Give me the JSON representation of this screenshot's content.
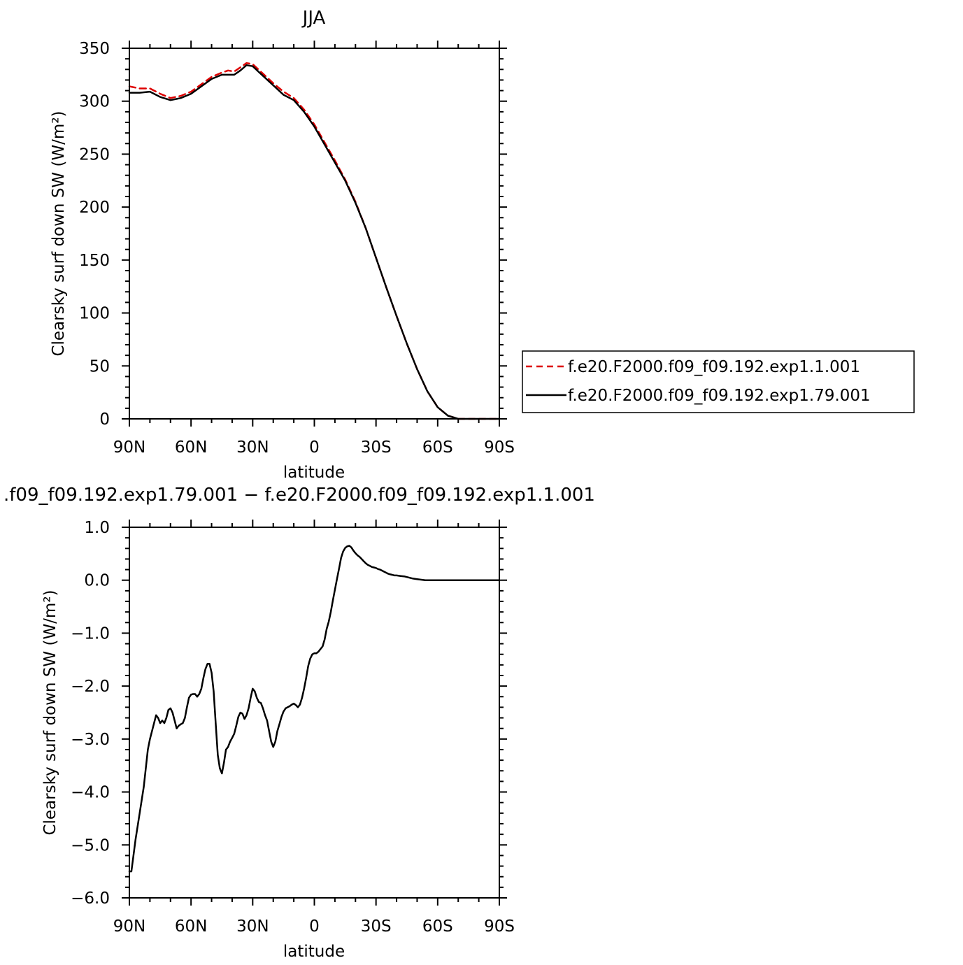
{
  "chart_data": [
    {
      "type": "line",
      "title": "JJA",
      "xlabel": "latitude",
      "ylabel": "Clearsky surf down SW (W/m²)",
      "xlim": [
        90,
        -90
      ],
      "ylim": [
        0,
        350
      ],
      "x_ticks": [
        {
          "value": 90,
          "label": "90N"
        },
        {
          "value": 60,
          "label": "60N"
        },
        {
          "value": 30,
          "label": "30N"
        },
        {
          "value": 0,
          "label": "0"
        },
        {
          "value": -30,
          "label": "30S"
        },
        {
          "value": -60,
          "label": "60S"
        },
        {
          "value": -90,
          "label": "90S"
        }
      ],
      "y_ticks": [
        {
          "value": 0,
          "label": "0"
        },
        {
          "value": 50,
          "label": "50"
        },
        {
          "value": 100,
          "label": "100"
        },
        {
          "value": 150,
          "label": "150"
        },
        {
          "value": 200,
          "label": "200"
        },
        {
          "value": 250,
          "label": "250"
        },
        {
          "value": 300,
          "label": "300"
        },
        {
          "value": 350,
          "label": "350"
        }
      ],
      "legend_position": "right",
      "series": [
        {
          "name": "f.e20.F2000.f09_f09.192.exp1.1.001",
          "color": "#dd0000",
          "style": "dashed",
          "x": [
            90,
            85,
            80,
            75,
            70,
            65,
            60,
            55,
            50,
            45,
            42,
            39,
            36,
            33,
            30,
            25,
            20,
            15,
            10,
            5,
            0,
            -5,
            -10,
            -15,
            -20,
            -25,
            -30,
            -35,
            -40,
            -45,
            -50,
            -55,
            -60,
            -65,
            -70,
            -75,
            -80,
            -85,
            -90
          ],
          "y": [
            314,
            312,
            312,
            307,
            303,
            305,
            309,
            316,
            323,
            327,
            329,
            328,
            332,
            336,
            335,
            326,
            317,
            309,
            303,
            292,
            278,
            261,
            244,
            226,
            205,
            180,
            152,
            124,
            97,
            71,
            47,
            26,
            11,
            3,
            0,
            0,
            0,
            0,
            0
          ]
        },
        {
          "name": "f.e20.F2000.f09_f09.192.exp1.79.001",
          "color": "#000000",
          "style": "solid",
          "x": [
            90,
            85,
            80,
            75,
            70,
            65,
            60,
            55,
            50,
            45,
            42,
            39,
            36,
            33,
            30,
            25,
            20,
            15,
            10,
            5,
            0,
            -5,
            -10,
            -15,
            -20,
            -25,
            -30,
            -35,
            -40,
            -45,
            -50,
            -55,
            -60,
            -65,
            -70,
            -75,
            -80,
            -85,
            -90
          ],
          "y": [
            308,
            308,
            309,
            304,
            301,
            303,
            307,
            314,
            321,
            325,
            325,
            325,
            329,
            334,
            333,
            324,
            315,
            306,
            301,
            290,
            276,
            259,
            242,
            225,
            204,
            180,
            152,
            124,
            97,
            71,
            47,
            26,
            11,
            3,
            0,
            0,
            0,
            0,
            0
          ]
        }
      ]
    },
    {
      "type": "line",
      "title": ".f09_f09.192.exp1.79.001 − f.e20.F2000.f09_f09.192.exp1.1.001",
      "xlabel": "latitude",
      "ylabel": "Clearsky surf down SW (W/m²)",
      "xlim": [
        90,
        -90
      ],
      "ylim": [
        -6,
        1
      ],
      "x_ticks": [
        {
          "value": 90,
          "label": "90N"
        },
        {
          "value": 60,
          "label": "60N"
        },
        {
          "value": 30,
          "label": "30N"
        },
        {
          "value": 0,
          "label": "0"
        },
        {
          "value": -30,
          "label": "30S"
        },
        {
          "value": -60,
          "label": "60S"
        },
        {
          "value": -90,
          "label": "90S"
        }
      ],
      "y_ticks": [
        {
          "value": 1,
          "label": "1.0"
        },
        {
          "value": 0,
          "label": "0.0"
        },
        {
          "value": -1,
          "label": "−1.0"
        },
        {
          "value": -2,
          "label": "−2.0"
        },
        {
          "value": -3,
          "label": "−3.0"
        },
        {
          "value": -4,
          "label": "−4.0"
        },
        {
          "value": -5,
          "label": "−5.0"
        },
        {
          "value": -6,
          "label": "−6.0"
        }
      ],
      "series": [
        {
          "color": "#000000",
          "style": "solid",
          "x": [
            90,
            89,
            87,
            85,
            83,
            81,
            80,
            78,
            77,
            76,
            75,
            74,
            73,
            72,
            71,
            70,
            69,
            68,
            67,
            66,
            65,
            64,
            63,
            62,
            61,
            60,
            59,
            58,
            57,
            56,
            55,
            54,
            53,
            52,
            51,
            50,
            49,
            48,
            47,
            46,
            45,
            44,
            43,
            42,
            41,
            40,
            39,
            38,
            37,
            36,
            35,
            34,
            33,
            32,
            31,
            30,
            29,
            28,
            27,
            26,
            25,
            24,
            23,
            22,
            21,
            20,
            19,
            18,
            17,
            16,
            15,
            14,
            13,
            12,
            11,
            10,
            9,
            8,
            7,
            6,
            5,
            4,
            3,
            2,
            1,
            0,
            -1,
            -2,
            -3,
            -4,
            -5,
            -6,
            -7,
            -8,
            -9,
            -10,
            -11,
            -12,
            -13,
            -14,
            -15,
            -16,
            -17,
            -18,
            -19,
            -20,
            -21,
            -22,
            -23,
            -24,
            -25,
            -26,
            -27,
            -28,
            -29,
            -30,
            -31,
            -32,
            -33,
            -34,
            -35,
            -36,
            -37,
            -38,
            -39,
            -40,
            -42,
            -44,
            -46,
            -48,
            -50,
            -52,
            -54,
            -56,
            -58,
            -60,
            -62,
            -64,
            -66,
            -68,
            -70,
            -72,
            -74,
            -76,
            -78,
            -80,
            -84,
            -88,
            -90
          ],
          "y": [
            -5.5,
            -5.5,
            -4.9,
            -4.4,
            -3.9,
            -3.2,
            -3.0,
            -2.7,
            -2.55,
            -2.6,
            -2.7,
            -2.65,
            -2.7,
            -2.6,
            -2.45,
            -2.42,
            -2.5,
            -2.65,
            -2.8,
            -2.75,
            -2.72,
            -2.7,
            -2.6,
            -2.4,
            -2.22,
            -2.16,
            -2.15,
            -2.15,
            -2.2,
            -2.15,
            -2.05,
            -1.85,
            -1.68,
            -1.58,
            -1.58,
            -1.75,
            -2.1,
            -2.7,
            -3.3,
            -3.55,
            -3.65,
            -3.45,
            -3.2,
            -3.15,
            -3.05,
            -2.98,
            -2.9,
            -2.75,
            -2.58,
            -2.5,
            -2.52,
            -2.62,
            -2.55,
            -2.42,
            -2.22,
            -2.05,
            -2.1,
            -2.22,
            -2.3,
            -2.32,
            -2.42,
            -2.55,
            -2.65,
            -2.85,
            -3.05,
            -3.15,
            -3.05,
            -2.85,
            -2.72,
            -2.58,
            -2.48,
            -2.42,
            -2.4,
            -2.38,
            -2.35,
            -2.33,
            -2.36,
            -2.4,
            -2.35,
            -2.22,
            -2.05,
            -1.85,
            -1.62,
            -1.48,
            -1.4,
            -1.38,
            -1.38,
            -1.35,
            -1.3,
            -1.25,
            -1.12,
            -0.92,
            -0.78,
            -0.6,
            -0.38,
            -0.18,
            0.02,
            0.22,
            0.42,
            0.54,
            0.61,
            0.64,
            0.65,
            0.62,
            0.56,
            0.51,
            0.47,
            0.44,
            0.4,
            0.36,
            0.32,
            0.29,
            0.27,
            0.25,
            0.24,
            0.23,
            0.21,
            0.2,
            0.18,
            0.16,
            0.14,
            0.12,
            0.11,
            0.1,
            0.09,
            0.09,
            0.08,
            0.07,
            0.05,
            0.03,
            0.02,
            0.01,
            0.0,
            0.0,
            0.0,
            0.0,
            0.0,
            0.0,
            0.0,
            0.0,
            0.0,
            0.0,
            0.0,
            0.0,
            0.0,
            0.0,
            0.0,
            0.0,
            0.0
          ]
        }
      ]
    }
  ]
}
